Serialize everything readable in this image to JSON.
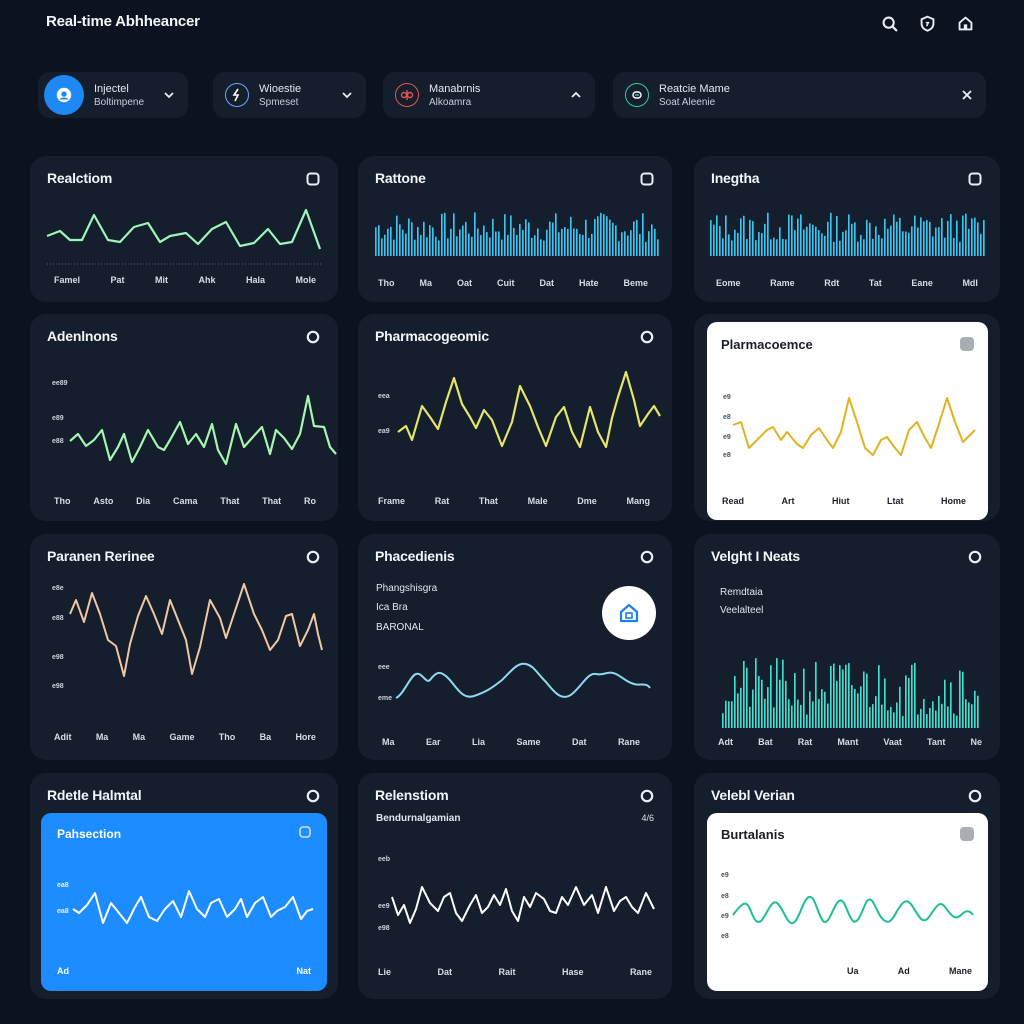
{
  "app": {
    "title": "Real-time Abhheancer"
  },
  "header_icons": [
    {
      "name": "search-icon"
    },
    {
      "name": "shield-icon"
    },
    {
      "name": "home-icon"
    }
  ],
  "filters": [
    {
      "line1": "Injectel",
      "line2": "Boltimpene",
      "icon": "profile-icon",
      "control": "chevron-down",
      "accent": "#1e88f5"
    },
    {
      "line1": "Wioestie",
      "line2": "Spmeset",
      "icon": "pulse-icon",
      "control": "chevron-down",
      "accent": "#6aa7ff"
    },
    {
      "line1": "Manabrnis",
      "line2": "Alkoamra",
      "icon": "molecule-icon",
      "control": "chevron-up",
      "accent": "#e2574c"
    },
    {
      "line1": "Reatcie Mame",
      "line2": "Soat Aleenie",
      "icon": "leaf-icon",
      "control": "close",
      "accent": "#35c9a1"
    }
  ],
  "cards": [
    {
      "title": "Realctiom",
      "xlabels": [
        "Famel",
        "Pat",
        "Mit",
        "Ahk",
        "Hala",
        "Mole"
      ]
    },
    {
      "title": "Rattone",
      "xlabels": [
        "Tho",
        "Ma",
        "Oat",
        "Cuit",
        "Dat",
        "Hate",
        "Beme"
      ]
    },
    {
      "title": "Inegtha",
      "xlabels": [
        "Eome",
        "Rame",
        "Rdt",
        "Tat",
        "Eane",
        "Mdl"
      ]
    },
    {
      "title": "Adenlnons",
      "ylabels": [
        "ee89",
        "e89",
        "e88"
      ],
      "xlabels": [
        "Tho",
        "Asto",
        "Dia",
        "Cama",
        "That",
        "That",
        "Ro"
      ]
    },
    {
      "title": "Pharmacogeomic",
      "ylabels": [
        "eea",
        "ea9"
      ],
      "xlabels": [
        "Frame",
        "Rat",
        "That",
        "Male",
        "Dme",
        "Mang"
      ]
    },
    {
      "title": "Plarmacoemce",
      "ylabels": [
        "e9",
        "e8",
        "e9",
        "e8"
      ],
      "xlabels": [
        "Read",
        "Art",
        "Hiut",
        "Ltat",
        "Home"
      ]
    },
    {
      "title": "Paranen Rerinee",
      "ylabels": [
        "e8e",
        "e88",
        "e98",
        "e98"
      ],
      "xlabels": [
        "Adit",
        "Ma",
        "Ma",
        "Game",
        "Tho",
        "Ba",
        "Hore"
      ]
    },
    {
      "title": "Phacedienis",
      "info": [
        "Phangshisgra",
        "Ica Bra",
        "BARONAL"
      ],
      "ylabels": [
        "eee",
        "eme"
      ],
      "xlabels": [
        "Ma",
        "Ear",
        "Lia",
        "Same",
        "Dat",
        "Rane"
      ]
    },
    {
      "title": "Velght I Neats",
      "info": [
        "Remdtaia",
        "Veelalteel"
      ],
      "xlabels": [
        "Adt",
        "Bat",
        "Rat",
        "Mant",
        "Vaat",
        "Tant",
        "Ne"
      ]
    },
    {
      "title": "Rdetle Halmtal",
      "inner_title": "Pahsection",
      "ylabels": [
        "ea8",
        "ea8"
      ],
      "xlabels": [
        "Ad",
        "Nat"
      ]
    },
    {
      "title": "Relenstiom",
      "subtitle": "Bendurnalgamian",
      "subvalue": "4/6",
      "ylabels": [
        "eeb",
        "ee9",
        "e98"
      ],
      "xlabels": [
        "Lie",
        "Dat",
        "Rait",
        "Hase",
        "Rane"
      ]
    },
    {
      "title": "Velebl Verian",
      "inner_title": "Burtalanis",
      "ylabels": [
        "e9",
        "e8",
        "e9",
        "e8"
      ],
      "xlabels": [
        "Ua",
        "Ad",
        "Mane"
      ]
    }
  ],
  "colors": {
    "background": "#0b1320",
    "card": "#141e2d",
    "green": "#9df5b9",
    "cyan": "#36c6f0",
    "yellow": "#e4e46a",
    "gold": "#e0b222",
    "peach": "#f0c7a3",
    "sky": "#8fd8f2",
    "teal": "#3ee0cf",
    "blue_panel": "#1c8cff",
    "white": "#ffffff",
    "emerald": "#1fbf96"
  }
}
